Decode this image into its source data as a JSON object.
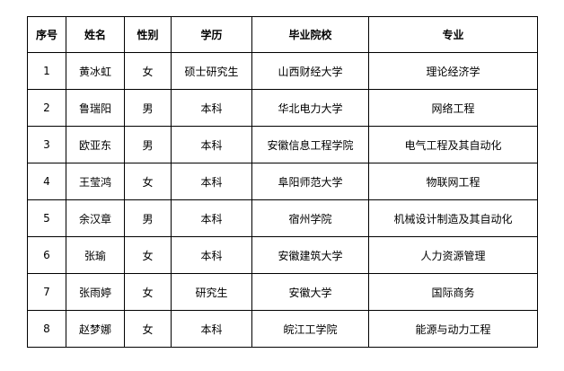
{
  "headers": [
    "序号",
    "姓名",
    "性别",
    "学历",
    "毕业院校",
    "专业"
  ],
  "rows": [
    [
      "1",
      "黄冰虹",
      "女",
      "硕士研究生",
      "山西财经大学",
      "理论经济学"
    ],
    [
      "2",
      "鲁瑞阳",
      "男",
      "本科",
      "华北电力大学",
      "网络工程"
    ],
    [
      "3",
      "欧亚东",
      "男",
      "本科",
      "安徽信息工程学院",
      "电气工程及其自动化"
    ],
    [
      "4",
      "王莹鸿",
      "女",
      "本科",
      "阜阳师范大学",
      "物联网工程"
    ],
    [
      "5",
      "余汉章",
      "男",
      "本科",
      "宿州学院",
      "机械设计制造及其自动化"
    ],
    [
      "6",
      "张瑜",
      "女",
      "本科",
      "安徽建筑大学",
      "人力资源管理"
    ],
    [
      "7",
      "张雨婷",
      "女",
      "研究生",
      "安徽大学",
      "国际商务"
    ],
    [
      "8",
      "赵梦娜",
      "女",
      "本科",
      "皖江工学院",
      "能源与动力工程"
    ]
  ]
}
